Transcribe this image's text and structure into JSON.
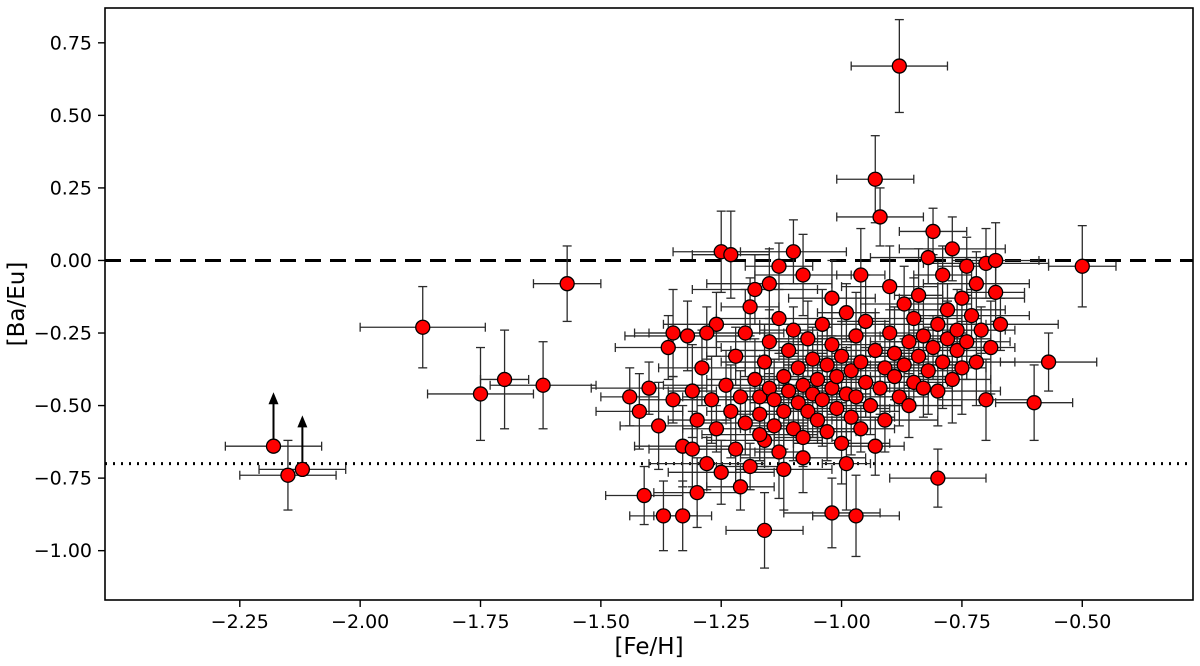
{
  "figure": {
    "background": "#ffffff"
  },
  "chart_data": {
    "type": "scatter",
    "title": "",
    "xlabel": "[Fe/H]",
    "ylabel": "[Ba/Eu]",
    "xlim": [
      -2.53,
      -0.27
    ],
    "ylim": [
      -1.17,
      0.87
    ],
    "xticks": [
      -2.25,
      -2.0,
      -1.75,
      -1.5,
      -1.25,
      -1.0,
      -0.75,
      -0.5
    ],
    "xtick_labels": [
      "−2.25",
      "−2.00",
      "−1.75",
      "−1.50",
      "−1.25",
      "−1.00",
      "−0.75",
      "−0.50"
    ],
    "yticks": [
      -1.0,
      -0.75,
      -0.5,
      -0.25,
      0.0,
      0.25,
      0.5,
      0.75
    ],
    "ytick_labels": [
      "−1.00",
      "−0.75",
      "−0.50",
      "−0.25",
      "0.00",
      "0.25",
      "0.50",
      "0.75"
    ],
    "grid": false,
    "legend": "none",
    "marker": {
      "shape": "circle",
      "fill": "#ff0000",
      "edge": "#000000",
      "radius": 7
    },
    "errorbar_color": "#2b2b2b",
    "hlines": [
      {
        "y": 0.0,
        "style": "dashed",
        "color": "#000000",
        "width": 3
      },
      {
        "y": -0.7,
        "style": "dotted",
        "color": "#000000",
        "width": 3
      }
    ],
    "lower_limits": [
      [
        -2.18,
        -0.64,
        0.1
      ],
      [
        -2.12,
        -0.72,
        0.09
      ]
    ],
    "points": [
      [
        -2.15,
        -0.74,
        0.1,
        0.12
      ],
      [
        -1.87,
        -0.23,
        0.13,
        0.14
      ],
      [
        -1.75,
        -0.46,
        0.11,
        0.16
      ],
      [
        -1.7,
        -0.41,
        0.05,
        0.17
      ],
      [
        -1.62,
        -0.43,
        0.11,
        0.15
      ],
      [
        -1.57,
        -0.08,
        0.07,
        0.13
      ],
      [
        -0.88,
        0.67,
        0.1,
        0.16
      ],
      [
        -0.93,
        0.28,
        0.08,
        0.15
      ],
      [
        -0.92,
        0.15,
        0.09,
        0.1
      ],
      [
        -0.5,
        -0.02,
        0.07,
        0.14
      ],
      [
        -0.57,
        -0.35,
        0.1,
        0.1
      ],
      [
        -0.6,
        -0.49,
        0.08,
        0.13
      ],
      [
        -1.41,
        -0.81,
        0.08,
        0.1
      ],
      [
        -1.37,
        -0.88,
        0.07,
        0.12
      ],
      [
        -1.33,
        -0.88,
        0.06,
        0.12
      ],
      [
        -1.3,
        -0.8,
        0.09,
        0.12
      ],
      [
        -1.16,
        -0.93,
        0.08,
        0.13
      ],
      [
        -1.02,
        -0.87,
        0.1,
        0.12
      ],
      [
        -0.97,
        -0.88,
        0.09,
        0.14
      ],
      [
        -0.8,
        -0.75,
        0.1,
        0.1
      ],
      [
        -1.44,
        -0.47,
        0.06,
        0.1
      ],
      [
        -1.42,
        -0.52,
        0.09,
        0.13
      ],
      [
        -1.4,
        -0.44,
        0.12,
        0.09
      ],
      [
        -1.38,
        -0.57,
        0.08,
        0.15
      ],
      [
        -1.36,
        -0.3,
        0.11,
        0.11
      ],
      [
        -1.35,
        -0.48,
        0.07,
        0.08
      ],
      [
        -1.33,
        -0.64,
        0.1,
        0.14
      ],
      [
        -1.32,
        -0.26,
        0.13,
        0.12
      ],
      [
        -1.31,
        -0.45,
        0.05,
        0.16
      ],
      [
        -1.3,
        -0.55,
        0.06,
        0.1
      ],
      [
        -1.29,
        -0.37,
        0.09,
        0.13
      ],
      [
        -1.28,
        -0.7,
        0.12,
        0.09
      ],
      [
        -1.27,
        -0.48,
        0.08,
        0.15
      ],
      [
        -1.26,
        -0.22,
        0.11,
        0.11
      ],
      [
        -1.26,
        -0.58,
        0.07,
        0.08
      ],
      [
        -1.25,
        0.03,
        0.1,
        0.14
      ],
      [
        -1.24,
        -0.43,
        0.13,
        0.12
      ],
      [
        -1.23,
        -0.52,
        0.05,
        0.16
      ],
      [
        -1.22,
        -0.33,
        0.06,
        0.1
      ],
      [
        -1.22,
        -0.65,
        0.09,
        0.13
      ],
      [
        -1.21,
        -0.47,
        0.12,
        0.09
      ],
      [
        -1.2,
        -0.25,
        0.08,
        0.15
      ],
      [
        -1.2,
        -0.56,
        0.11,
        0.11
      ],
      [
        -1.19,
        -0.71,
        0.07,
        0.08
      ],
      [
        -1.18,
        -0.41,
        0.1,
        0.14
      ],
      [
        -1.18,
        -0.1,
        0.13,
        0.12
      ],
      [
        -1.17,
        -0.53,
        0.05,
        0.16
      ],
      [
        -1.17,
        -0.47,
        0.06,
        0.1
      ],
      [
        -1.16,
        -0.35,
        0.09,
        0.13
      ],
      [
        -1.16,
        -0.62,
        0.12,
        0.09
      ],
      [
        -1.15,
        -0.44,
        0.08,
        0.15
      ],
      [
        -1.15,
        -0.28,
        0.11,
        0.11
      ],
      [
        -1.14,
        -0.57,
        0.07,
        0.08
      ],
      [
        -1.14,
        -0.48,
        0.1,
        0.14
      ],
      [
        -1.13,
        -0.2,
        0.13,
        0.12
      ],
      [
        -1.13,
        -0.66,
        0.05,
        0.16
      ],
      [
        -1.12,
        -0.4,
        0.06,
        0.1
      ],
      [
        -1.12,
        -0.52,
        0.09,
        0.13
      ],
      [
        -1.11,
        -0.31,
        0.12,
        0.09
      ],
      [
        -1.11,
        -0.45,
        0.08,
        0.15
      ],
      [
        -1.1,
        -0.58,
        0.11,
        0.11
      ],
      [
        -1.1,
        -0.24,
        0.07,
        0.08
      ],
      [
        -1.09,
        -0.49,
        0.1,
        0.14
      ],
      [
        -1.09,
        -0.37,
        0.13,
        0.12
      ],
      [
        -1.08,
        -0.43,
        0.05,
        0.16
      ],
      [
        -1.08,
        -0.61,
        0.06,
        0.1
      ],
      [
        -1.07,
        -0.27,
        0.09,
        0.13
      ],
      [
        -1.07,
        -0.52,
        0.12,
        0.09
      ],
      [
        -1.06,
        -0.46,
        0.08,
        0.15
      ],
      [
        -1.06,
        -0.34,
        0.11,
        0.11
      ],
      [
        -1.05,
        -0.55,
        0.07,
        0.08
      ],
      [
        -1.05,
        -0.41,
        0.1,
        0.14
      ],
      [
        -1.04,
        -0.22,
        0.13,
        0.12
      ],
      [
        -1.04,
        -0.48,
        0.05,
        0.16
      ],
      [
        -1.03,
        -0.59,
        0.06,
        0.1
      ],
      [
        -1.03,
        -0.36,
        0.09,
        0.13
      ],
      [
        -1.02,
        -0.44,
        0.12,
        0.09
      ],
      [
        -1.02,
        -0.29,
        0.08,
        0.15
      ],
      [
        -1.01,
        -0.51,
        0.11,
        0.11
      ],
      [
        -1.01,
        -0.4,
        0.07,
        0.08
      ],
      [
        -1.0,
        -0.63,
        0.1,
        0.14
      ],
      [
        -1.0,
        -0.33,
        0.13,
        0.12
      ],
      [
        -0.99,
        -0.46,
        0.05,
        0.16
      ],
      [
        -0.99,
        -0.18,
        0.06,
        0.1
      ],
      [
        -0.98,
        -0.54,
        0.09,
        0.13
      ],
      [
        -0.98,
        -0.38,
        0.12,
        0.09
      ],
      [
        -0.97,
        -0.26,
        0.08,
        0.15
      ],
      [
        -0.97,
        -0.47,
        0.11,
        0.11
      ],
      [
        -0.96,
        -0.58,
        0.07,
        0.08
      ],
      [
        -0.96,
        -0.35,
        0.1,
        0.14
      ],
      [
        -0.95,
        -0.42,
        0.13,
        0.12
      ],
      [
        -0.95,
        -0.21,
        0.05,
        0.16
      ],
      [
        -0.94,
        -0.5,
        0.06,
        0.1
      ],
      [
        -0.93,
        -0.31,
        0.09,
        0.13
      ],
      [
        -0.92,
        -0.44,
        0.12,
        0.09
      ],
      [
        -0.91,
        -0.37,
        0.08,
        0.15
      ],
      [
        -0.91,
        -0.55,
        0.11,
        0.11
      ],
      [
        -0.9,
        -0.25,
        0.07,
        0.08
      ],
      [
        -0.9,
        -0.09,
        0.1,
        0.14
      ],
      [
        -0.89,
        -0.4,
        0.13,
        0.12
      ],
      [
        -0.89,
        -0.32,
        0.05,
        0.16
      ],
      [
        -0.88,
        -0.47,
        0.06,
        0.1
      ],
      [
        -0.87,
        -0.15,
        0.09,
        0.13
      ],
      [
        -0.87,
        -0.36,
        0.12,
        0.09
      ],
      [
        -0.86,
        -0.28,
        0.08,
        0.15
      ],
      [
        -0.86,
        -0.5,
        0.11,
        0.11
      ],
      [
        -0.85,
        -0.42,
        0.07,
        0.08
      ],
      [
        -0.85,
        -0.2,
        0.1,
        0.14
      ],
      [
        -0.84,
        -0.33,
        0.13,
        0.12
      ],
      [
        -0.84,
        -0.12,
        0.05,
        0.16
      ],
      [
        -0.83,
        -0.44,
        0.06,
        0.1
      ],
      [
        -0.83,
        -0.26,
        0.09,
        0.13
      ],
      [
        -0.82,
        0.01,
        0.12,
        0.09
      ],
      [
        -0.82,
        -0.38,
        0.08,
        0.15
      ],
      [
        -0.81,
        -0.3,
        0.11,
        0.11
      ],
      [
        -0.81,
        0.1,
        0.07,
        0.08
      ],
      [
        -0.8,
        -0.22,
        0.1,
        0.14
      ],
      [
        -0.8,
        -0.45,
        0.13,
        0.12
      ],
      [
        -0.79,
        -0.35,
        0.05,
        0.16
      ],
      [
        -0.79,
        -0.05,
        0.06,
        0.1
      ],
      [
        -0.78,
        -0.27,
        0.09,
        0.13
      ],
      [
        -0.78,
        -0.17,
        0.12,
        0.09
      ],
      [
        -0.77,
        -0.41,
        0.08,
        0.15
      ],
      [
        -0.77,
        0.04,
        0.11,
        0.11
      ],
      [
        -0.76,
        -0.31,
        0.07,
        0.08
      ],
      [
        -0.76,
        -0.24,
        0.1,
        0.14
      ],
      [
        -0.75,
        -0.13,
        0.13,
        0.12
      ],
      [
        -0.75,
        -0.37,
        0.05,
        0.16
      ],
      [
        -0.74,
        -0.02,
        0.06,
        0.1
      ],
      [
        -0.74,
        -0.28,
        0.09,
        0.13
      ],
      [
        -0.73,
        -0.19,
        0.12,
        0.09
      ],
      [
        -0.72,
        -0.35,
        0.08,
        0.15
      ],
      [
        -0.72,
        -0.08,
        0.11,
        0.11
      ],
      [
        -0.71,
        -0.24,
        0.07,
        0.08
      ],
      [
        -0.7,
        -0.48,
        0.1,
        0.14
      ],
      [
        -0.7,
        -0.01,
        0.13,
        0.12
      ],
      [
        -0.69,
        -0.3,
        0.05,
        0.16
      ],
      [
        -0.68,
        -0.11,
        0.06,
        0.1
      ],
      [
        -0.68,
        0.0,
        0.09,
        0.13
      ],
      [
        -0.67,
        -0.22,
        0.12,
        0.09
      ],
      [
        -1.23,
        0.02,
        0.08,
        0.15
      ],
      [
        -1.1,
        0.03,
        0.11,
        0.11
      ],
      [
        -1.13,
        -0.02,
        0.07,
        0.08
      ],
      [
        -1.08,
        -0.05,
        0.1,
        0.14
      ],
      [
        -1.15,
        -0.08,
        0.13,
        0.12
      ],
      [
        -0.96,
        -0.05,
        0.05,
        0.16
      ],
      [
        -1.19,
        -0.16,
        0.06,
        0.1
      ],
      [
        -1.02,
        -0.13,
        0.09,
        0.13
      ],
      [
        -1.28,
        -0.25,
        0.12,
        0.09
      ],
      [
        -1.35,
        -0.25,
        0.08,
        0.15
      ],
      [
        -1.25,
        -0.73,
        0.11,
        0.11
      ],
      [
        -1.21,
        -0.78,
        0.07,
        0.08
      ],
      [
        -1.12,
        -0.72,
        0.1,
        0.14
      ],
      [
        -1.08,
        -0.68,
        0.13,
        0.12
      ],
      [
        -0.99,
        -0.7,
        0.05,
        0.16
      ],
      [
        -0.93,
        -0.64,
        0.06,
        0.1
      ],
      [
        -1.31,
        -0.65,
        0.09,
        0.13
      ],
      [
        -1.17,
        -0.6,
        0.12,
        0.09
      ]
    ]
  }
}
